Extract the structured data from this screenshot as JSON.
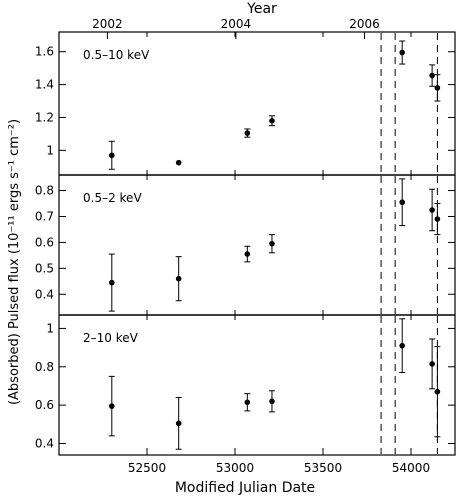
{
  "chart_data": {
    "type": "scatter",
    "xlabel": "Modified Julian Date",
    "top_axis_label": "Year",
    "ylabel": "(Absorbed) Pulsed flux (10⁻¹¹ ergs s⁻¹ cm⁻²)",
    "xlim": [
      52000,
      54250
    ],
    "x_ticks": [
      52500,
      53000,
      53500,
      54000
    ],
    "top_ticks": [
      {
        "label": "2002",
        "mjd": 52275
      },
      {
        "label": "2004",
        "mjd": 53005
      },
      {
        "label": "2006",
        "mjd": 53736
      }
    ],
    "vertical_dashed_lines_mjd": [
      53830,
      53910,
      54150
    ],
    "panels": [
      {
        "label": "0.5–10 keV",
        "ylim": [
          0.85,
          1.72
        ],
        "y_ticks": [
          1,
          1.2,
          1.4,
          1.6
        ],
        "points": [
          {
            "x": 52300,
            "y": 0.97,
            "err": 0.085
          },
          {
            "x": 52680,
            "y": 0.925,
            "err": 0
          },
          {
            "x": 53070,
            "y": 1.105,
            "err": 0.025
          },
          {
            "x": 53210,
            "y": 1.18,
            "err": 0.03
          },
          {
            "x": 53950,
            "y": 1.595,
            "err": 0.07
          },
          {
            "x": 54120,
            "y": 1.455,
            "err": 0.065
          },
          {
            "x": 54150,
            "y": 1.38,
            "err": 0.08
          }
        ]
      },
      {
        "label": "0.5–2 keV",
        "ylim": [
          0.32,
          0.86
        ],
        "y_ticks": [
          0.4,
          0.5,
          0.6,
          0.7,
          0.8
        ],
        "points": [
          {
            "x": 52300,
            "y": 0.445,
            "err": 0.11
          },
          {
            "x": 52680,
            "y": 0.46,
            "err": 0.085
          },
          {
            "x": 53070,
            "y": 0.555,
            "err": 0.03
          },
          {
            "x": 53210,
            "y": 0.595,
            "err": 0.035
          },
          {
            "x": 53950,
            "y": 0.755,
            "err": 0.09
          },
          {
            "x": 54120,
            "y": 0.725,
            "err": 0.08
          },
          {
            "x": 54150,
            "y": 0.69,
            "err": 0.06
          }
        ]
      },
      {
        "label": "2–10 keV",
        "ylim": [
          0.34,
          1.07
        ],
        "y_ticks": [
          0.4,
          0.6,
          0.8,
          1
        ],
        "points": [
          {
            "x": 52300,
            "y": 0.595,
            "err": 0.155
          },
          {
            "x": 52680,
            "y": 0.505,
            "err": 0.135
          },
          {
            "x": 53070,
            "y": 0.615,
            "err": 0.045
          },
          {
            "x": 53210,
            "y": 0.62,
            "err": 0.055
          },
          {
            "x": 53950,
            "y": 0.91,
            "err": 0.14
          },
          {
            "x": 54120,
            "y": 0.815,
            "err": 0.13
          },
          {
            "x": 54150,
            "y": 0.67,
            "err": 0.235
          }
        ]
      }
    ]
  }
}
